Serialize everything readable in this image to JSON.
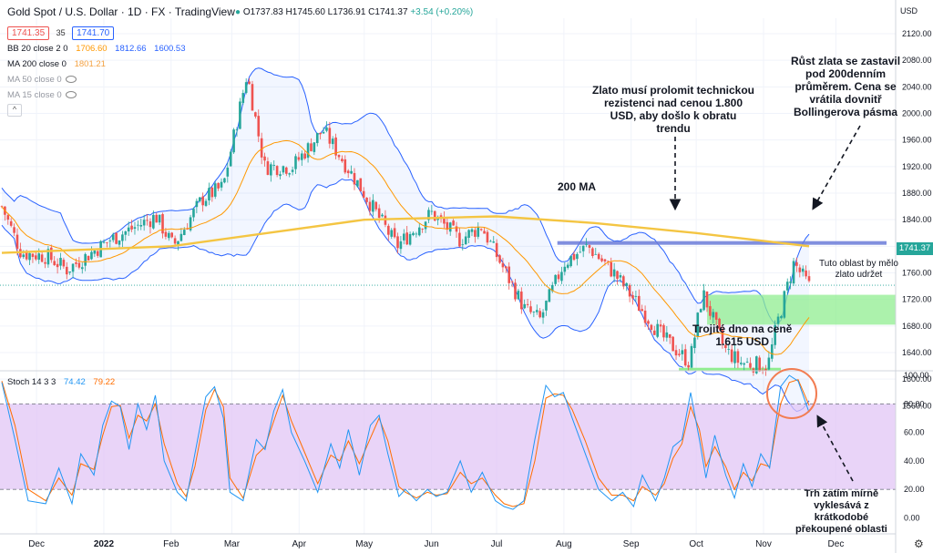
{
  "header": {
    "title": "Gold Spot / U.S. Dollar · 1D · FX · TradingView",
    "ohlc": "O1737.83 H1745.60 L1736.91 C1741.37",
    "change": "+3.54 (+0.20%)",
    "bid": "1741.35",
    "spread": "35",
    "ask": "1741.70",
    "currency": "USD"
  },
  "indicators": {
    "bb": {
      "label": "BB 20 close 2 0",
      "v1": "1706.60",
      "v2": "1812.66",
      "v3": "1600.53"
    },
    "ma200": {
      "label": "MA 200 close 0",
      "value": "1801.21"
    },
    "ma50": {
      "label": "MA 50 close 0"
    },
    "ma15": {
      "label": "MA 15 close 0"
    },
    "stoch": {
      "label": "Stoch 14 3 3",
      "k": "74.42",
      "d": "79.22"
    }
  },
  "annotations": {
    "resistance": "Zlato musí prolomit technickou\nrezistenci nad cenou 1.800\nUSD, aby došlo k obratu\ntrendu",
    "ma200_label": "200 MA",
    "stall": "Růst zlata se zastavil\npod 200denním\nprůměrem. Cena se\nvrátila dovnitř\nBollingerova pásma",
    "zone": "Tuto oblast by mělo\nzlato udržet",
    "triple_bottom": "Trojité dno na ceně\n1.615 USD",
    "overbought": "Trh zatím mírně\nvyklesává z\nkrátkodobé\npřekoupené oblasti"
  },
  "colors": {
    "up": "#26a69a",
    "down": "#ef5350",
    "bb": "#2962ff",
    "basis": "#ff9800",
    "ma200": "#f4c542",
    "stoch_k": "#2196f3",
    "stoch_d": "#ff6d00",
    "stoch_band": "#e1c6f5",
    "resistance_line": "#6b7bd8",
    "support_zone": "#90ee90",
    "circle": "#f27d52",
    "price_label": "#26a69a"
  },
  "chart_data": {
    "type": "candlestick",
    "symbol": "XAUUSD",
    "timeframe": "1D",
    "x_ticks": [
      "Dec",
      "2022",
      "Feb",
      "Mar",
      "Apr",
      "May",
      "Jun",
      "Jul",
      "Aug",
      "Sep",
      "Oct",
      "Nov",
      "Dec"
    ],
    "price_axis": {
      "ylim": [
        1560,
        2160
      ],
      "ticks": [
        "2120.00",
        "2080.00",
        "2040.00",
        "2000.00",
        "1960.00",
        "1920.00",
        "1880.00",
        "1840.00",
        "1800.00",
        "1760.00",
        "1720.00",
        "1680.00",
        "1640.00",
        "1600.00",
        "1560.00"
      ],
      "last_price": "1741.37"
    },
    "price_series": [
      [
        "2021-11-15",
        1860
      ],
      [
        "2021-11-24",
        1790
      ],
      [
        "2021-12-06",
        1785
      ],
      [
        "2021-12-15",
        1765
      ],
      [
        "2022-01-04",
        1810
      ],
      [
        "2022-01-25",
        1845
      ],
      [
        "2022-02-02",
        1800
      ],
      [
        "2022-02-15",
        1870
      ],
      [
        "2022-02-25",
        1890
      ],
      [
        "2022-03-08",
        2060
      ],
      [
        "2022-03-16",
        1920
      ],
      [
        "2022-03-29",
        1920
      ],
      [
        "2022-04-12",
        1975
      ],
      [
        "2022-04-28",
        1895
      ],
      [
        "2022-05-16",
        1800
      ],
      [
        "2022-06-01",
        1850
      ],
      [
        "2022-06-14",
        1810
      ],
      [
        "2022-06-24",
        1830
      ],
      [
        "2022-07-14",
        1705
      ],
      [
        "2022-07-21",
        1690
      ],
      [
        "2022-08-01",
        1775
      ],
      [
        "2022-08-12",
        1800
      ],
      [
        "2022-08-24",
        1760
      ],
      [
        "2022-09-15",
        1665
      ],
      [
        "2022-09-28",
        1625
      ],
      [
        "2022-10-04",
        1730
      ],
      [
        "2022-10-14",
        1645
      ],
      [
        "2022-10-21",
        1625
      ],
      [
        "2022-11-03",
        1620
      ],
      [
        "2022-11-07",
        1680
      ],
      [
        "2022-11-15",
        1775
      ],
      [
        "2022-11-22",
        1740
      ]
    ],
    "ma200_series": [
      [
        "2021-11-15",
        1790
      ],
      [
        "2022-02-01",
        1800
      ],
      [
        "2022-05-01",
        1840
      ],
      [
        "2022-07-01",
        1845
      ],
      [
        "2022-08-15",
        1835
      ],
      [
        "2022-10-01",
        1820
      ],
      [
        "2022-11-22",
        1800
      ]
    ],
    "stoch_axis": {
      "ylim": [
        0,
        100
      ],
      "ticks": [
        "100.00",
        "80.00",
        "60.00",
        "40.00",
        "20.00",
        "0.00"
      ],
      "overbought": 80,
      "oversold": 20
    },
    "stoch_k": [
      [
        0,
        95
      ],
      [
        6,
        55
      ],
      [
        12,
        12
      ],
      [
        20,
        10
      ],
      [
        26,
        35
      ],
      [
        32,
        10
      ],
      [
        36,
        45
      ],
      [
        42,
        30
      ],
      [
        46,
        65
      ],
      [
        50,
        82
      ],
      [
        54,
        78
      ],
      [
        58,
        48
      ],
      [
        62,
        80
      ],
      [
        66,
        62
      ],
      [
        70,
        86
      ],
      [
        74,
        40
      ],
      [
        80,
        18
      ],
      [
        84,
        12
      ],
      [
        88,
        45
      ],
      [
        93,
        85
      ],
      [
        97,
        92
      ],
      [
        101,
        70
      ],
      [
        104,
        18
      ],
      [
        110,
        12
      ],
      [
        116,
        55
      ],
      [
        120,
        48
      ],
      [
        124,
        75
      ],
      [
        128,
        90
      ],
      [
        132,
        60
      ],
      [
        138,
        40
      ],
      [
        144,
        18
      ],
      [
        150,
        52
      ],
      [
        154,
        35
      ],
      [
        158,
        62
      ],
      [
        163,
        30
      ],
      [
        168,
        65
      ],
      [
        172,
        72
      ],
      [
        176,
        45
      ],
      [
        181,
        15
      ],
      [
        184,
        20
      ],
      [
        189,
        12
      ],
      [
        194,
        20
      ],
      [
        198,
        15
      ],
      [
        203,
        18
      ],
      [
        209,
        40
      ],
      [
        214,
        18
      ],
      [
        219,
        32
      ],
      [
        225,
        12
      ],
      [
        229,
        8
      ],
      [
        233,
        6
      ],
      [
        238,
        12
      ],
      [
        243,
        55
      ],
      [
        248,
        93
      ],
      [
        252,
        85
      ],
      [
        256,
        88
      ],
      [
        260,
        70
      ],
      [
        266,
        45
      ],
      [
        272,
        20
      ],
      [
        278,
        12
      ],
      [
        283,
        18
      ],
      [
        288,
        8
      ],
      [
        292,
        30
      ],
      [
        298,
        12
      ],
      [
        302,
        28
      ],
      [
        306,
        50
      ],
      [
        310,
        55
      ],
      [
        314,
        88
      ],
      [
        318,
        55
      ],
      [
        321,
        28
      ],
      [
        325,
        58
      ],
      [
        330,
        30
      ],
      [
        334,
        14
      ],
      [
        338,
        38
      ],
      [
        342,
        22
      ],
      [
        346,
        45
      ],
      [
        350,
        35
      ],
      [
        355,
        92
      ],
      [
        359,
        100
      ],
      [
        363,
        96
      ],
      [
        368,
        74
      ]
    ],
    "stoch_d": [
      [
        0,
        96
      ],
      [
        6,
        65
      ],
      [
        12,
        20
      ],
      [
        20,
        12
      ],
      [
        26,
        28
      ],
      [
        32,
        16
      ],
      [
        36,
        38
      ],
      [
        42,
        34
      ],
      [
        46,
        58
      ],
      [
        50,
        78
      ],
      [
        54,
        79
      ],
      [
        58,
        56
      ],
      [
        62,
        72
      ],
      [
        66,
        68
      ],
      [
        70,
        80
      ],
      [
        74,
        52
      ],
      [
        80,
        24
      ],
      [
        84,
        15
      ],
      [
        88,
        36
      ],
      [
        93,
        76
      ],
      [
        97,
        90
      ],
      [
        101,
        78
      ],
      [
        104,
        28
      ],
      [
        110,
        14
      ],
      [
        116,
        44
      ],
      [
        120,
        50
      ],
      [
        124,
        68
      ],
      [
        128,
        86
      ],
      [
        132,
        68
      ],
      [
        138,
        46
      ],
      [
        144,
        24
      ],
      [
        150,
        44
      ],
      [
        154,
        40
      ],
      [
        158,
        54
      ],
      [
        163,
        38
      ],
      [
        168,
        56
      ],
      [
        172,
        70
      ],
      [
        176,
        54
      ],
      [
        181,
        22
      ],
      [
        184,
        18
      ],
      [
        189,
        14
      ],
      [
        194,
        18
      ],
      [
        198,
        16
      ],
      [
        203,
        17
      ],
      [
        209,
        32
      ],
      [
        214,
        24
      ],
      [
        219,
        28
      ],
      [
        225,
        16
      ],
      [
        229,
        10
      ],
      [
        233,
        8
      ],
      [
        238,
        10
      ],
      [
        243,
        40
      ],
      [
        248,
        84
      ],
      [
        252,
        87
      ],
      [
        256,
        86
      ],
      [
        260,
        76
      ],
      [
        266,
        54
      ],
      [
        272,
        28
      ],
      [
        278,
        16
      ],
      [
        283,
        16
      ],
      [
        288,
        12
      ],
      [
        292,
        22
      ],
      [
        298,
        16
      ],
      [
        302,
        24
      ],
      [
        306,
        42
      ],
      [
        310,
        52
      ],
      [
        314,
        78
      ],
      [
        318,
        62
      ],
      [
        321,
        36
      ],
      [
        325,
        50
      ],
      [
        330,
        36
      ],
      [
        334,
        20
      ],
      [
        338,
        32
      ],
      [
        342,
        26
      ],
      [
        346,
        38
      ],
      [
        350,
        36
      ],
      [
        355,
        80
      ],
      [
        359,
        95
      ],
      [
        363,
        97
      ],
      [
        368,
        79
      ]
    ]
  }
}
